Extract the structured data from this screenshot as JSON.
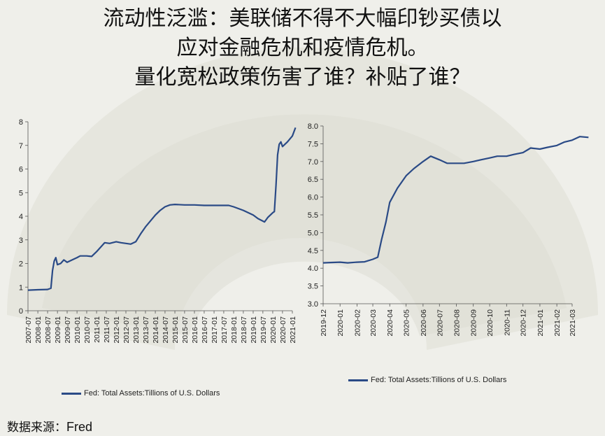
{
  "title": {
    "lines": [
      "流动性泛滥：美联储不得不大幅印钞买债以",
      "应对金融危机和疫情危机。",
      "量化宽松政策伤害了谁？补贴了谁？"
    ]
  },
  "source": {
    "label": "数据来源：",
    "value": "Fred"
  },
  "colors": {
    "series": "#2a4a86",
    "background": "#efefea"
  },
  "chart_data": [
    {
      "type": "line",
      "title": "",
      "xlabel": "",
      "ylabel": "",
      "ylim": [
        0,
        8
      ],
      "yticks": [
        "0",
        "1",
        "2",
        "3",
        "4",
        "5",
        "6",
        "7",
        "8"
      ],
      "xticks": [
        "2007-07",
        "2008-01",
        "2008-07",
        "2009-01",
        "2009-07",
        "2010-01",
        "2010-07",
        "2011-01",
        "2011-07",
        "2012-01",
        "2012-07",
        "2013-01",
        "2013-07",
        "2014-01",
        "2014-07",
        "2015-01",
        "2015-07",
        "2016-01",
        "2016-07",
        "2017-01",
        "2017-07",
        "2018-01",
        "2018-07",
        "2019-01",
        "2019-07",
        "2020-01",
        "2020-07",
        "2021-01"
      ],
      "grid": false,
      "legend": "bottom",
      "series": [
        {
          "name": "Fed: Total Assets:Tillions of U.S. Dollars",
          "points": [
            [
              "2007-07",
              0.87
            ],
            [
              "2008-01",
              0.89
            ],
            [
              "2008-07",
              0.9
            ],
            [
              "2008-09",
              0.95
            ],
            [
              "2008-10",
              1.7
            ],
            [
              "2008-11",
              2.1
            ],
            [
              "2008-12",
              2.25
            ],
            [
              "2009-01",
              1.95
            ],
            [
              "2009-03",
              2.0
            ],
            [
              "2009-05",
              2.15
            ],
            [
              "2009-07",
              2.05
            ],
            [
              "2009-10",
              2.15
            ],
            [
              "2010-01",
              2.25
            ],
            [
              "2010-03",
              2.32
            ],
            [
              "2010-07",
              2.32
            ],
            [
              "2010-10",
              2.3
            ],
            [
              "2011-01",
              2.5
            ],
            [
              "2011-03",
              2.65
            ],
            [
              "2011-06",
              2.88
            ],
            [
              "2011-09",
              2.85
            ],
            [
              "2012-01",
              2.92
            ],
            [
              "2012-04",
              2.88
            ],
            [
              "2012-07",
              2.85
            ],
            [
              "2012-10",
              2.82
            ],
            [
              "2013-01",
              2.92
            ],
            [
              "2013-04",
              3.25
            ],
            [
              "2013-07",
              3.55
            ],
            [
              "2013-10",
              3.8
            ],
            [
              "2014-01",
              4.05
            ],
            [
              "2014-04",
              4.25
            ],
            [
              "2014-07",
              4.4
            ],
            [
              "2014-10",
              4.48
            ],
            [
              "2015-01",
              4.5
            ],
            [
              "2015-07",
              4.48
            ],
            [
              "2016-01",
              4.48
            ],
            [
              "2016-07",
              4.46
            ],
            [
              "2017-01",
              4.46
            ],
            [
              "2017-07",
              4.46
            ],
            [
              "2017-10",
              4.46
            ],
            [
              "2018-01",
              4.4
            ],
            [
              "2018-07",
              4.25
            ],
            [
              "2019-01",
              4.05
            ],
            [
              "2019-04",
              3.9
            ],
            [
              "2019-08",
              3.76
            ],
            [
              "2019-10",
              3.95
            ],
            [
              "2020-01",
              4.15
            ],
            [
              "2020-02",
              4.2
            ],
            [
              "2020-03",
              5.3
            ],
            [
              "2020-04",
              6.6
            ],
            [
              "2020-05",
              7.05
            ],
            [
              "2020-06",
              7.15
            ],
            [
              "2020-07",
              6.95
            ],
            [
              "2020-10",
              7.15
            ],
            [
              "2021-01",
              7.4
            ],
            [
              "2021-03",
              7.75
            ]
          ]
        }
      ]
    },
    {
      "type": "line",
      "title": "",
      "xlabel": "",
      "ylabel": "",
      "ylim": [
        3.0,
        8.0
      ],
      "yticks": [
        "3.0",
        "3.5",
        "4.0",
        "4.5",
        "5.0",
        "5.5",
        "6.0",
        "6.5",
        "7.0",
        "7.5",
        "8.0"
      ],
      "xticks": [
        "2019-12",
        "2020-01",
        "2020-02",
        "2020-03",
        "2020-04",
        "2020-05",
        "2020-06",
        "2020-07",
        "2020-08",
        "2020-09",
        "2020-10",
        "2020-11",
        "2020-12",
        "2021-01",
        "2021-02",
        "2021-03"
      ],
      "grid": false,
      "legend": "bottom",
      "series": [
        {
          "name": "Fed: Total Assets:Tillions of U.S. Dollars",
          "points": [
            [
              "2019-12-01",
              4.15
            ],
            [
              "2019-12-15",
              4.16
            ],
            [
              "2020-01-01",
              4.17
            ],
            [
              "2020-01-15",
              4.15
            ],
            [
              "2020-02-01",
              4.17
            ],
            [
              "2020-02-15",
              4.18
            ],
            [
              "2020-03-01",
              4.25
            ],
            [
              "2020-03-10",
              4.31
            ],
            [
              "2020-03-17",
              4.8
            ],
            [
              "2020-03-25",
              5.3
            ],
            [
              "2020-04-01",
              5.85
            ],
            [
              "2020-04-15",
              6.25
            ],
            [
              "2020-05-01",
              6.6
            ],
            [
              "2020-05-15",
              6.8
            ],
            [
              "2020-06-01",
              7.0
            ],
            [
              "2020-06-15",
              7.15
            ],
            [
              "2020-07-01",
              7.05
            ],
            [
              "2020-07-15",
              6.95
            ],
            [
              "2020-08-01",
              6.95
            ],
            [
              "2020-08-15",
              6.95
            ],
            [
              "2020-09-01",
              7.0
            ],
            [
              "2020-09-15",
              7.05
            ],
            [
              "2020-10-01",
              7.1
            ],
            [
              "2020-10-15",
              7.15
            ],
            [
              "2020-11-01",
              7.15
            ],
            [
              "2020-11-15",
              7.2
            ],
            [
              "2020-12-01",
              7.25
            ],
            [
              "2020-12-15",
              7.38
            ],
            [
              "2021-01-01",
              7.35
            ],
            [
              "2021-01-15",
              7.4
            ],
            [
              "2021-02-01",
              7.45
            ],
            [
              "2021-02-15",
              7.55
            ],
            [
              "2021-03-01",
              7.6
            ],
            [
              "2021-03-15",
              7.7
            ],
            [
              "2021-03-31",
              7.68
            ]
          ]
        }
      ]
    }
  ]
}
